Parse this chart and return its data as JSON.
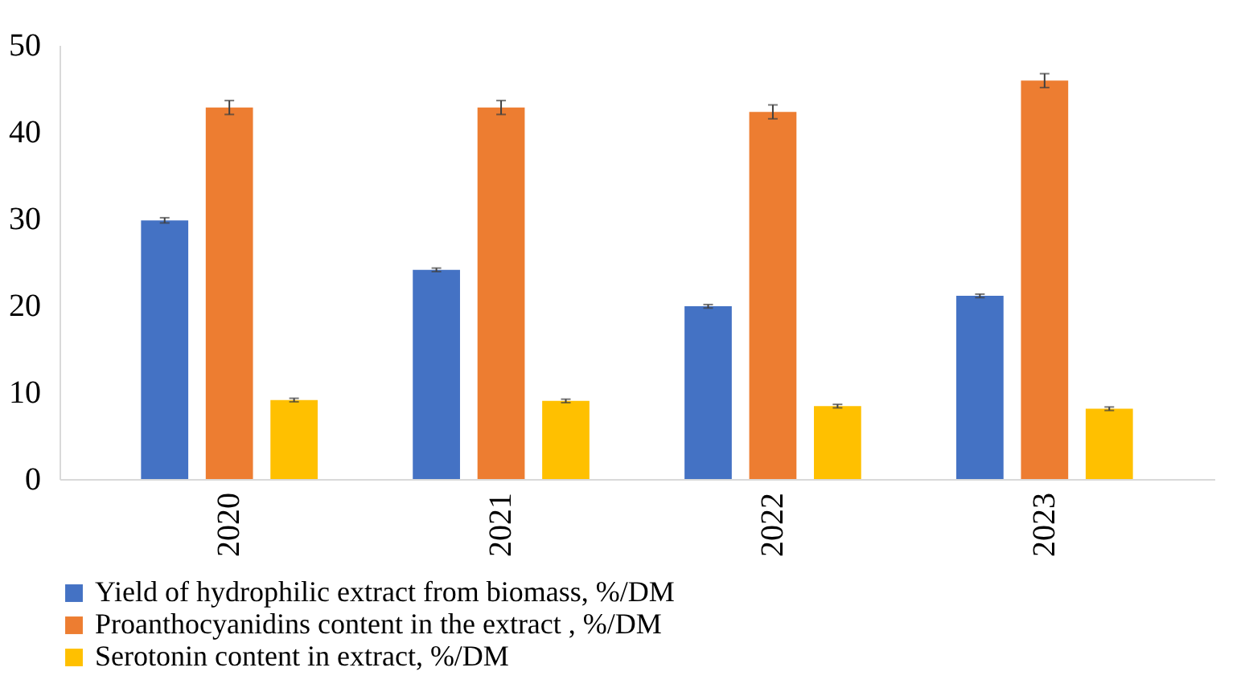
{
  "chart_data": {
    "type": "bar",
    "categories": [
      "2020",
      "2021",
      "2022",
      "2023"
    ],
    "series": [
      {
        "name": "Yield of hydrophilic extract from biomass, %/DM",
        "color": "#4472c4",
        "values": [
          29.8,
          24.1,
          19.9,
          21.1
        ],
        "errors": [
          0.3,
          0.2,
          0.2,
          0.2
        ]
      },
      {
        "name": "Proanthocyanidins content in the extract , %/DM",
        "color": "#ed7d31",
        "values": [
          42.8,
          42.8,
          42.3,
          45.9
        ],
        "errors": [
          0.8,
          0.8,
          0.8,
          0.8
        ]
      },
      {
        "name": "Serotonin content in extract, %/DM",
        "color": "#ffc000",
        "values": [
          9.1,
          9.0,
          8.4,
          8.1
        ],
        "errors": [
          0.2,
          0.2,
          0.2,
          0.2
        ]
      }
    ],
    "ylim": [
      0,
      50
    ],
    "yticks": [
      0,
      10,
      20,
      30,
      40,
      50
    ],
    "grid": false,
    "legend": "bottom"
  }
}
